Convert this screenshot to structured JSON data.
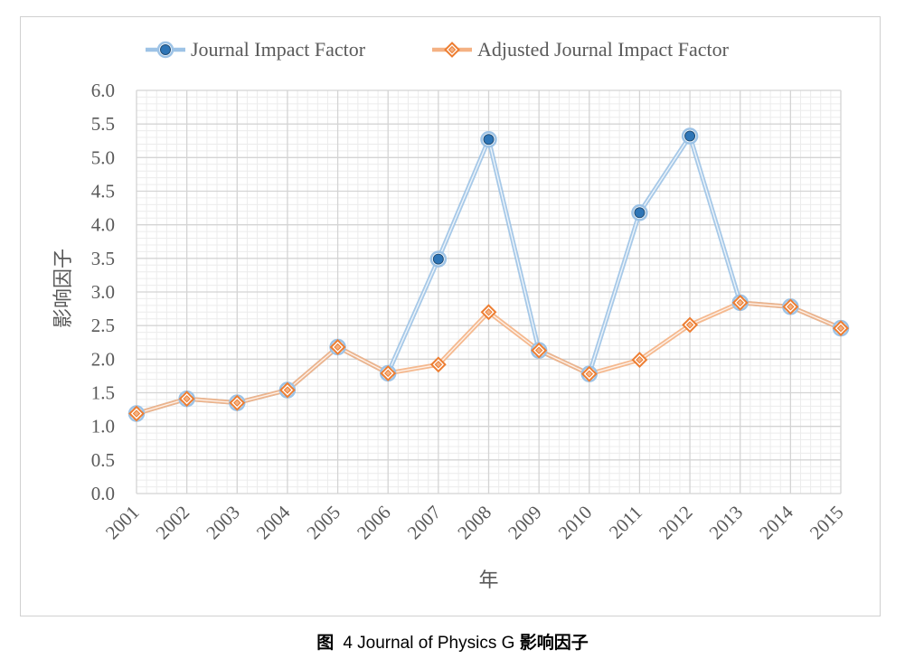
{
  "chart_data": {
    "type": "line",
    "categories": [
      "2001",
      "2002",
      "2003",
      "2004",
      "2005",
      "2006",
      "2007",
      "2008",
      "2009",
      "2010",
      "2011",
      "2012",
      "2013",
      "2014",
      "2015"
    ],
    "series": [
      {
        "name": "Journal Impact Factor",
        "color": "#2e75b6",
        "line_color": "#9dc3e6",
        "marker": "circle",
        "values": [
          1.19,
          1.41,
          1.35,
          1.54,
          2.18,
          1.79,
          3.49,
          5.27,
          2.13,
          1.78,
          4.18,
          5.32,
          2.84,
          2.78,
          2.46
        ]
      },
      {
        "name": "Adjusted Journal Impact Factor",
        "color": "#ed7d31",
        "line_color": "#f4b183",
        "marker": "diamond",
        "values": [
          1.19,
          1.41,
          1.35,
          1.54,
          2.18,
          1.79,
          1.92,
          2.7,
          2.13,
          1.78,
          1.99,
          2.51,
          2.84,
          2.78,
          2.46
        ]
      }
    ],
    "xlabel": "年",
    "ylabel": "影响因子",
    "ylim": [
      0,
      6
    ],
    "ytick_step": 0.5,
    "yticks": [
      "0.0",
      "0.5",
      "1.0",
      "1.5",
      "2.0",
      "2.5",
      "3.0",
      "3.5",
      "4.0",
      "4.5",
      "5.0",
      "5.5",
      "6.0"
    ],
    "grid": true,
    "legend_position": "top"
  },
  "caption": {
    "label": "图",
    "text": "4 Journal of Physics G",
    "suffix": "影响因子"
  }
}
